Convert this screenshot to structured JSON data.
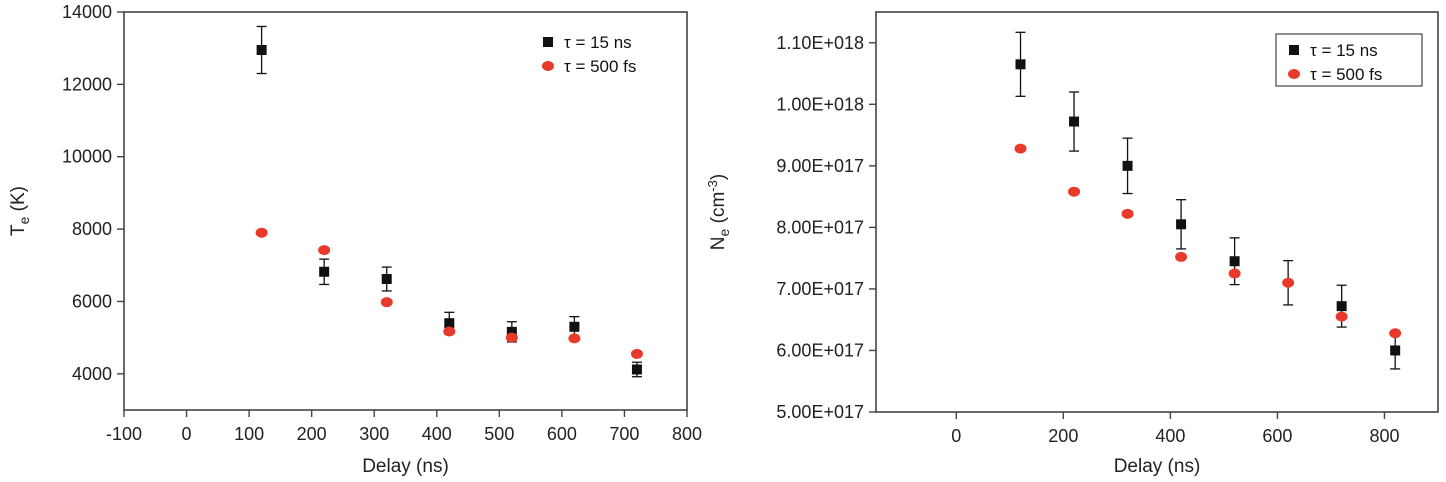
{
  "colors": {
    "series1": "#111111",
    "series2": "#e8392a",
    "axis": "#444444"
  },
  "chart_data": [
    {
      "type": "scatter",
      "xlabel": "Delay (ns)",
      "ylabel_main": "T",
      "ylabel_sub": "e",
      "ylabel_rest": " (K)",
      "xlim": [
        -100,
        800
      ],
      "ylim": [
        3000,
        14000
      ],
      "xticks": [
        -100,
        0,
        100,
        200,
        300,
        400,
        500,
        600,
        700,
        800
      ],
      "xtick_labels": [
        "-100",
        "0",
        "100",
        "200",
        "300",
        "400",
        "500",
        "600",
        "700",
        "800"
      ],
      "yticks": [
        4000,
        6000,
        8000,
        10000,
        12000,
        14000
      ],
      "ytick_labels": [
        "4000",
        "6000",
        "8000",
        "10000",
        "12000",
        "14000"
      ],
      "grid": false,
      "legend": "top-right",
      "legend_box": false,
      "series": [
        {
          "name": "τ = 15 ns",
          "marker": "square",
          "x": [
            120,
            220,
            320,
            420,
            520,
            620,
            720
          ],
          "y": [
            12950,
            6820,
            6620,
            5400,
            5160,
            5300,
            4120
          ],
          "yerr": [
            650,
            350,
            330,
            300,
            280,
            280,
            200
          ]
        },
        {
          "name": "τ = 500 fs",
          "marker": "circle",
          "x": [
            120,
            220,
            320,
            420,
            520,
            620,
            720
          ],
          "y": [
            7900,
            7420,
            5980,
            5170,
            5000,
            4980,
            4550
          ]
        }
      ]
    },
    {
      "type": "scatter",
      "xlabel": "Delay (ns)",
      "ylabel_main": "N",
      "ylabel_sub": "e",
      "ylabel_rest": " (cm",
      "ylabel_sup": "-3",
      "ylabel_end": ")",
      "xlim": [
        -150,
        900
      ],
      "ylim": [
        5e+17,
        1.15e+18
      ],
      "xticks": [
        0,
        200,
        400,
        600,
        800
      ],
      "xtick_labels": [
        "0",
        "200",
        "400",
        "600",
        "800"
      ],
      "yticks": [
        5e+17,
        6e+17,
        7e+17,
        8e+17,
        9e+17,
        1e+18,
        1.1e+18
      ],
      "ytick_labels": [
        "5.00E+017",
        "6.00E+017",
        "7.00E+017",
        "8.00E+017",
        "9.00E+017",
        "1.00E+018",
        "1.10E+018"
      ],
      "grid": false,
      "legend": "top-right",
      "legend_box": true,
      "series": [
        {
          "name": "τ = 15 ns",
          "marker": "square",
          "x": [
            120,
            220,
            320,
            420,
            520,
            720,
            820
          ],
          "y": [
            1.065e+18,
            9.72e+17,
            9e+17,
            8.05e+17,
            7.45e+17,
            6.72e+17,
            6e+17
          ],
          "yerr": [
            5.2e+16,
            4.8e+16,
            4.5e+16,
            4e+16,
            3.8e+16,
            3.4e+16,
            3e+16
          ]
        },
        {
          "name": "τ = 500 fs",
          "marker": "circle",
          "x": [
            120,
            220,
            320,
            420,
            520,
            620,
            720,
            820
          ],
          "y": [
            9.28e+17,
            8.58e+17,
            8.22e+17,
            7.52e+17,
            7.25e+17,
            7.1e+17,
            6.55e+17,
            6.28e+17
          ],
          "yerr": [
            0,
            0,
            0,
            0,
            0,
            3.6e+16,
            0,
            0
          ]
        }
      ]
    }
  ]
}
